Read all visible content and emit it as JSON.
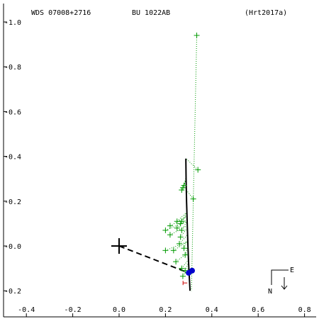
{
  "header": {
    "system": "WDS 07008+2716",
    "discoverer": "BU 1022AB",
    "reference": "(Hrt2017a)"
  },
  "compass": {
    "east_label": "E",
    "north_label": "N"
  },
  "colors": {
    "axes": "#000000",
    "observations": "#009900",
    "residual_lines": "#009900",
    "orbit": "#000000",
    "node_line": "#000000",
    "predicted": "#0000cc",
    "reference_point": "#cc0000"
  },
  "chart_data": {
    "type": "scatter",
    "title": "",
    "xlabel": "",
    "ylabel": "",
    "xlim": [
      -0.5,
      0.85
    ],
    "ylim": [
      -0.23,
      1.04
    ],
    "x_ticks": [
      {
        "value": -0.4,
        "label": "-0.4"
      },
      {
        "value": -0.2,
        "label": "-0.2"
      },
      {
        "value": 0.0,
        "label": "0.0"
      },
      {
        "value": 0.2,
        "label": "0.2"
      },
      {
        "value": 0.4,
        "label": "0.4"
      },
      {
        "value": 0.6,
        "label": "0.6"
      },
      {
        "value": 0.8,
        "label": "0.8"
      }
    ],
    "y_ticks": [
      {
        "value": 1.0,
        "label": "-1.0"
      },
      {
        "value": 0.8,
        "label": "-0.8"
      },
      {
        "value": 0.6,
        "label": "-0.6"
      },
      {
        "value": 0.4,
        "label": "-0.4"
      },
      {
        "value": 0.2,
        "label": "-0.2"
      },
      {
        "value": 0.0,
        "label": "-0.0"
      },
      {
        "value": -0.2,
        "label": "-0.2"
      }
    ],
    "primary": {
      "x": 0.0,
      "y": 0.0
    },
    "orbit_path": [
      {
        "x": 0.288,
        "y": 0.39
      },
      {
        "x": 0.289,
        "y": 0.3
      },
      {
        "x": 0.291,
        "y": 0.2
      },
      {
        "x": 0.294,
        "y": 0.1
      },
      {
        "x": 0.297,
        "y": 0.0
      },
      {
        "x": 0.3,
        "y": -0.08
      },
      {
        "x": 0.303,
        "y": -0.14
      },
      {
        "x": 0.306,
        "y": -0.2
      }
    ],
    "node_line": [
      {
        "x": 0.0,
        "y": 0.0
      },
      {
        "x": 0.3,
        "y": -0.12
      }
    ],
    "observations": [
      {
        "x": 0.335,
        "y": 0.94
      },
      {
        "x": 0.34,
        "y": 0.34
      },
      {
        "x": 0.28,
        "y": 0.27
      },
      {
        "x": 0.275,
        "y": 0.26
      },
      {
        "x": 0.27,
        "y": 0.25
      },
      {
        "x": 0.32,
        "y": 0.21
      },
      {
        "x": 0.27,
        "y": 0.11
      },
      {
        "x": 0.25,
        "y": 0.11
      },
      {
        "x": 0.265,
        "y": 0.1
      },
      {
        "x": 0.22,
        "y": 0.09
      },
      {
        "x": 0.25,
        "y": 0.08
      },
      {
        "x": 0.27,
        "y": 0.07
      },
      {
        "x": 0.2,
        "y": 0.07
      },
      {
        "x": 0.22,
        "y": 0.05
      },
      {
        "x": 0.265,
        "y": 0.04
      },
      {
        "x": 0.26,
        "y": 0.01
      },
      {
        "x": 0.28,
        "y": -0.01
      },
      {
        "x": 0.2,
        "y": -0.02
      },
      {
        "x": 0.235,
        "y": -0.02
      },
      {
        "x": 0.285,
        "y": -0.04
      },
      {
        "x": 0.245,
        "y": -0.07
      },
      {
        "x": 0.27,
        "y": -0.1
      },
      {
        "x": 0.285,
        "y": -0.11
      },
      {
        "x": 0.275,
        "y": -0.135
      }
    ],
    "observation_fits": [
      {
        "x": 0.312,
        "y": -0.2
      },
      {
        "x": 0.289,
        "y": 0.39
      },
      {
        "x": 0.289,
        "y": 0.31
      },
      {
        "x": 0.289,
        "y": 0.3
      },
      {
        "x": 0.289,
        "y": 0.29
      },
      {
        "x": 0.29,
        "y": 0.25
      },
      {
        "x": 0.292,
        "y": 0.15
      },
      {
        "x": 0.292,
        "y": 0.15
      },
      {
        "x": 0.292,
        "y": 0.14
      },
      {
        "x": 0.292,
        "y": 0.13
      },
      {
        "x": 0.292,
        "y": 0.12
      },
      {
        "x": 0.293,
        "y": 0.11
      },
      {
        "x": 0.293,
        "y": 0.11
      },
      {
        "x": 0.294,
        "y": 0.09
      },
      {
        "x": 0.294,
        "y": 0.08
      },
      {
        "x": 0.295,
        "y": 0.05
      },
      {
        "x": 0.296,
        "y": 0.03
      },
      {
        "x": 0.296,
        "y": 0.02
      },
      {
        "x": 0.296,
        "y": 0.02
      },
      {
        "x": 0.297,
        "y": 0.0
      },
      {
        "x": 0.298,
        "y": -0.03
      },
      {
        "x": 0.3,
        "y": -0.06
      },
      {
        "x": 0.301,
        "y": -0.07
      },
      {
        "x": 0.302,
        "y": -0.095
      }
    ],
    "predicted": [
      {
        "x": 0.3,
        "y": -0.12
      },
      {
        "x": 0.315,
        "y": -0.11
      }
    ],
    "reference_point": {
      "x": 0.285,
      "y": -0.165
    },
    "grid": false,
    "legend": "none"
  }
}
